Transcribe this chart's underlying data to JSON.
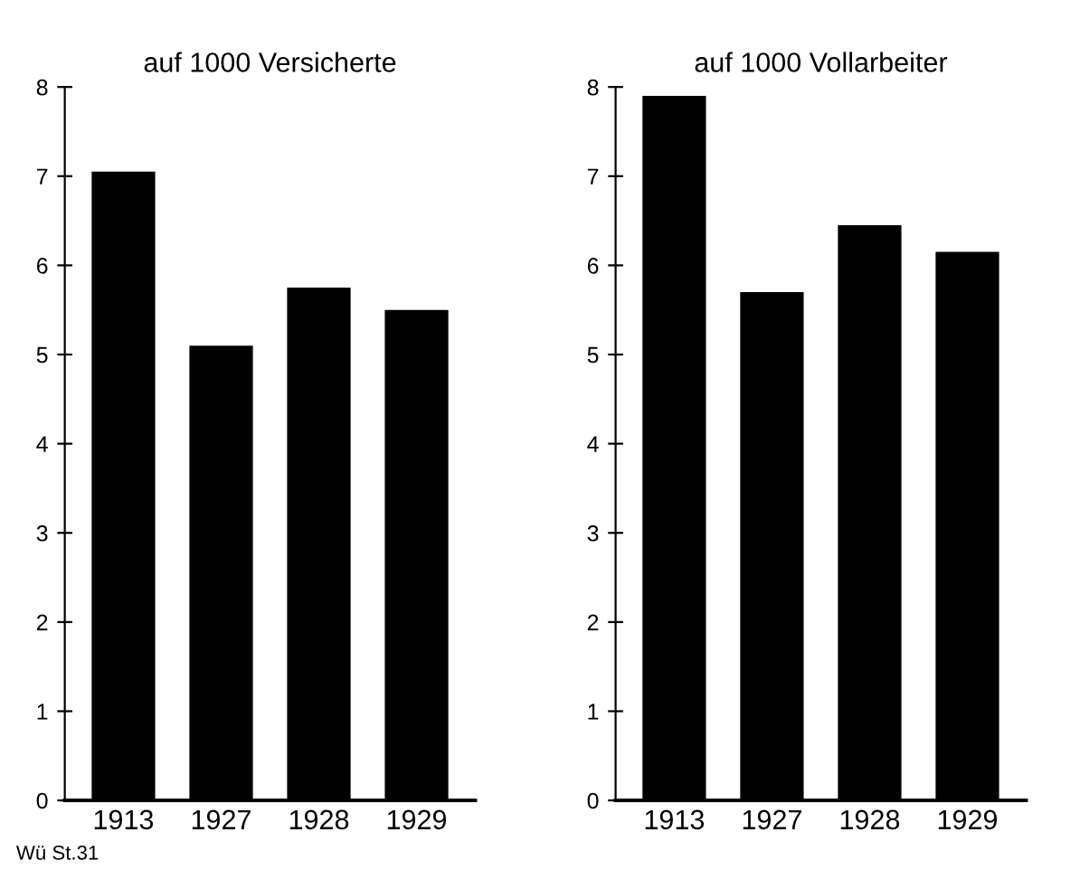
{
  "chart_data": [
    {
      "type": "bar",
      "title": "auf 1000 Versicherte",
      "categories": [
        "1913",
        "1927",
        "1928",
        "1929"
      ],
      "values": [
        7.05,
        5.1,
        5.75,
        5.5
      ],
      "color": "#000000",
      "ylim": [
        0,
        8
      ],
      "yticks": [
        0,
        1,
        2,
        3,
        4,
        5,
        6,
        7,
        8
      ],
      "grid": false,
      "annotations": [
        "Wü St.31"
      ]
    },
    {
      "type": "bar",
      "title": "auf 1000 Vollarbeiter",
      "categories": [
        "1913",
        "1927",
        "1928",
        "1929"
      ],
      "values": [
        7.9,
        5.7,
        6.45,
        6.15
      ],
      "color": "#000000",
      "ylim": [
        0,
        8
      ],
      "yticks": [
        0,
        1,
        2,
        3,
        4,
        5,
        6,
        7,
        8
      ],
      "grid": false
    }
  ]
}
